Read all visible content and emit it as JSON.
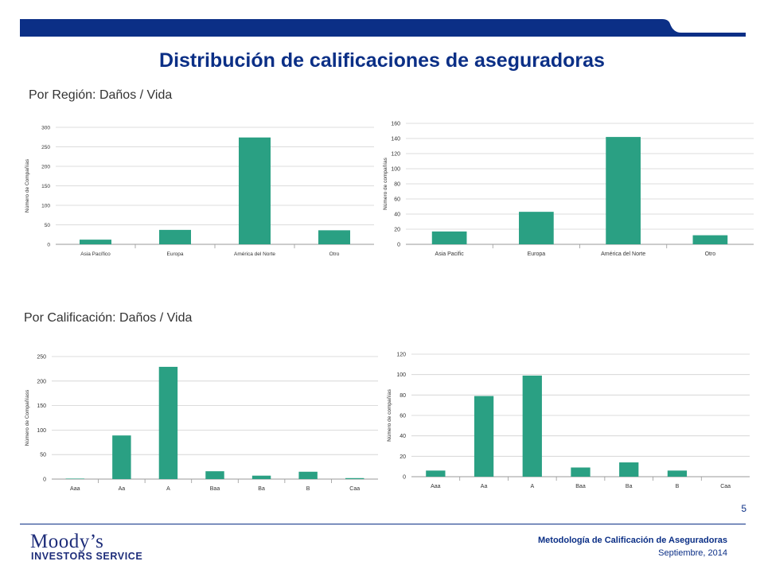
{
  "header": {
    "title": "Distribución de calificaciones de aseguradoras",
    "bar_color": "#0b2f86"
  },
  "sections": {
    "region": "Por Región: Daños / Vida",
    "rating": "Por Calificación: Daños / Vida"
  },
  "colors": {
    "bar": "#2aa083",
    "grid": "#d0d0d0",
    "axis_text": "#333333"
  },
  "chart_data": [
    {
      "type": "bar",
      "categories": [
        "Asia Pacífico",
        "Europa",
        "América del Norte",
        "Otro"
      ],
      "values": [
        12,
        37,
        274,
        36
      ],
      "ylabel": "Número de Compañías",
      "ylim": [
        0,
        300
      ],
      "yticks": [
        0,
        50,
        100,
        150,
        200,
        250,
        300
      ],
      "grid": true
    },
    {
      "type": "bar",
      "categories": [
        "Asia Pacific",
        "Europa",
        "América del Norte",
        "Otro"
      ],
      "values": [
        17,
        43,
        142,
        12
      ],
      "ylabel": "Número de compañías",
      "ylim": [
        0,
        160
      ],
      "yticks": [
        0,
        20,
        40,
        60,
        80,
        100,
        120,
        140,
        160
      ],
      "grid": true
    },
    {
      "type": "bar",
      "categories": [
        "Aaa",
        "Aa",
        "A",
        "Baa",
        "Ba",
        "B",
        "Caa"
      ],
      "values": [
        1,
        89,
        229,
        16,
        7,
        15,
        2
      ],
      "ylabel": "Número de Compañíass",
      "ylim": [
        0,
        250
      ],
      "yticks": [
        0,
        50,
        100,
        150,
        200,
        250
      ],
      "grid": true
    },
    {
      "type": "bar",
      "categories": [
        "Aaa",
        "Aa",
        "A",
        "Baa",
        "Ba",
        "B",
        "Caa"
      ],
      "values": [
        6,
        79,
        99,
        9,
        14,
        6,
        0
      ],
      "ylabel": "Número de compañías",
      "ylim": [
        0,
        120
      ],
      "yticks": [
        0,
        20,
        40,
        60,
        80,
        100,
        120
      ],
      "grid": true
    }
  ],
  "footer": {
    "page_number": "5",
    "logo_top": "Moody’s",
    "logo_bottom": "INVESTORS SERVICE",
    "document": "Metodología de Calificación de Aseguradoras",
    "date": "Septiembre, 2014"
  }
}
